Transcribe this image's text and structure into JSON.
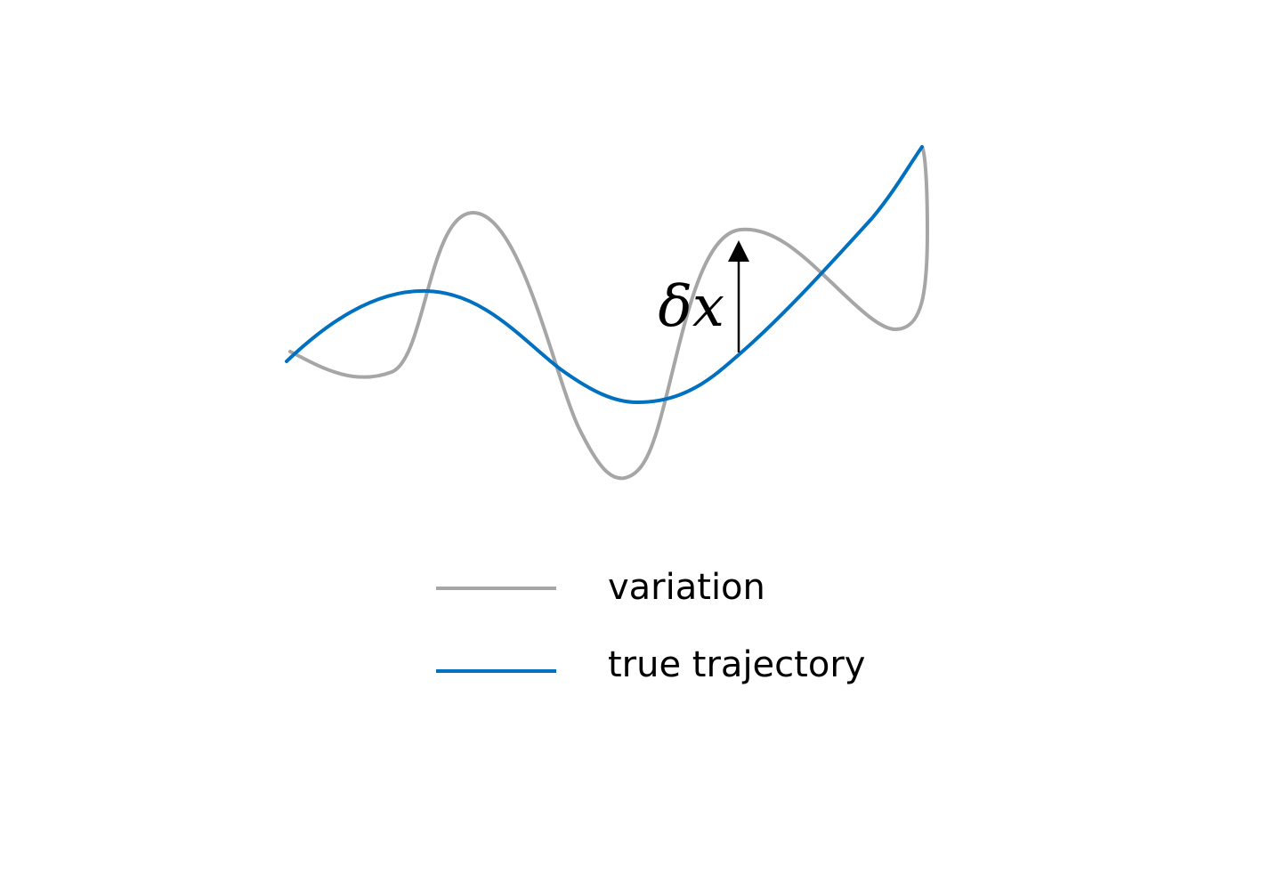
{
  "annotation": {
    "label": "δx",
    "color": "#000000"
  },
  "legend": {
    "items": [
      {
        "label": "variation",
        "color": "#a6a6a6"
      },
      {
        "label": "true trajectory",
        "color": "#0070c0"
      }
    ]
  }
}
